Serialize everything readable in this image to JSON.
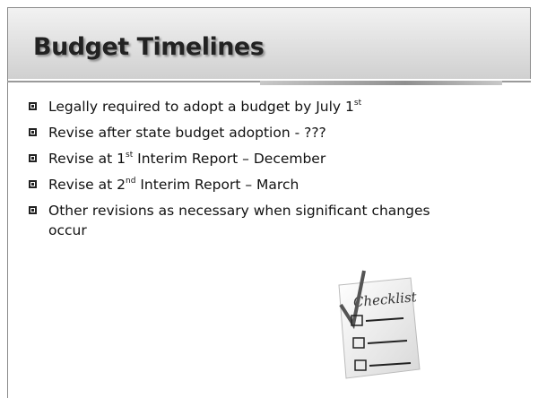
{
  "slide": {
    "title": "Budget Timelines",
    "bullets": [
      [
        "Legally required to adopt a budget by July 1",
        "st"
      ],
      [
        "Revise after state budget adoption - ???"
      ],
      [
        "Revise at 1",
        "st",
        " Interim Report – December"
      ],
      [
        "Revise at 2",
        "nd",
        " Interim Report – March"
      ],
      [
        "Other revisions as necessary when significant changes occur"
      ]
    ],
    "clipart_text": "Checklist"
  }
}
